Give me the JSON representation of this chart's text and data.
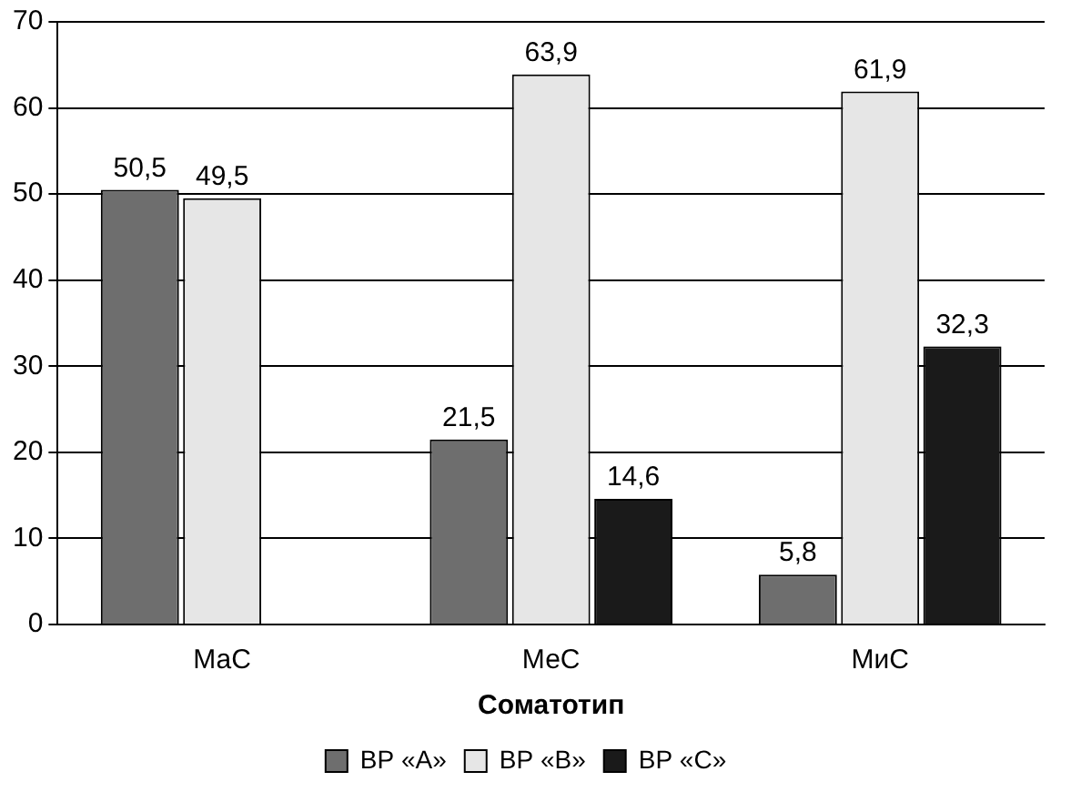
{
  "chart_data": {
    "type": "bar",
    "xlabel": "Соматотип",
    "categories": [
      "МаС",
      "МеС",
      "МиС"
    ],
    "series": [
      {
        "name": "ВР «А»",
        "color": "#6e6e6e",
        "values": [
          50.5,
          21.5,
          5.8
        ],
        "value_labels": [
          "50,5",
          "21,5",
          "5,8"
        ]
      },
      {
        "name": "ВР «В»",
        "color": "#e6e6e6",
        "values": [
          49.5,
          63.9,
          61.9
        ],
        "value_labels": [
          "49,5",
          "63,9",
          "61,9"
        ]
      },
      {
        "name": "ВР «С»",
        "color": "#1a1a1a",
        "values": [
          null,
          14.6,
          32.3
        ],
        "value_labels": [
          null,
          "14,6",
          "32,3"
        ]
      }
    ],
    "ylim": [
      0,
      70
    ],
    "yticks": [
      0,
      10,
      20,
      30,
      40,
      50,
      60,
      70
    ],
    "grid": "y",
    "legend": "bottom"
  }
}
